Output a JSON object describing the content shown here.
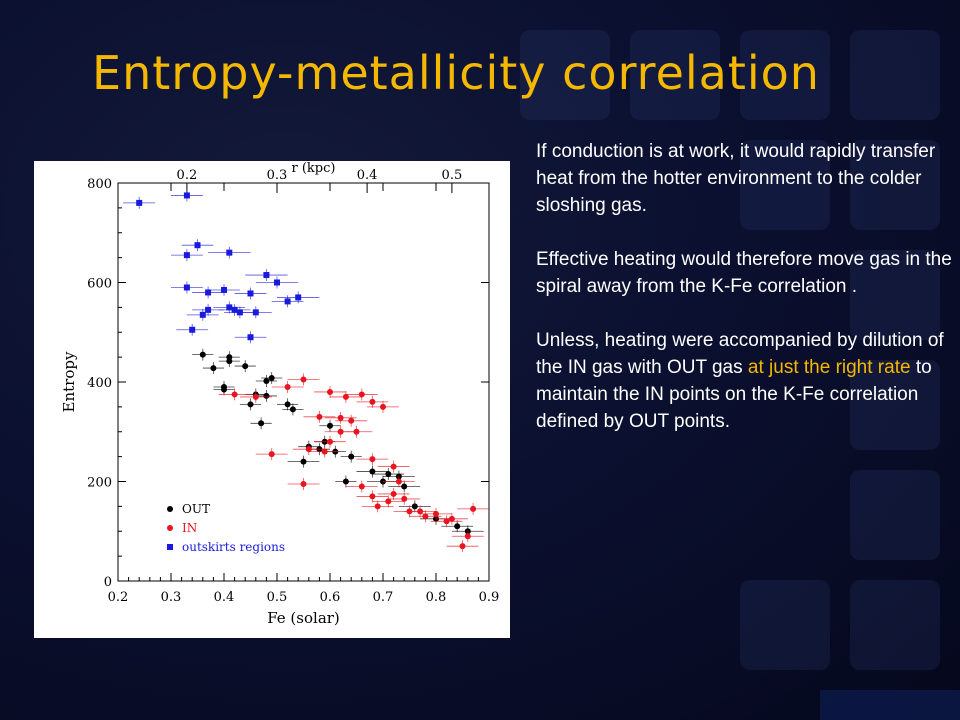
{
  "slide": {
    "title": "Entropy-metallicity correlation",
    "paragraphs": [
      {
        "text": "If conduction is at work, it would rapidly transfer heat from the hotter environment to the colder sloshing gas."
      },
      {
        "text": "Effective heating would therefore move gas in the spiral away from the K-Fe correlation ."
      },
      {
        "pre": "Unless, heating were accompanied by dilution of the IN gas with OUT gas ",
        "highlight": "at just the right rate",
        "post": " to maintain the IN points on the K-Fe correlation defined by OUT points."
      }
    ],
    "colors": {
      "title": "#f5b800",
      "highlight": "#f5b800",
      "text": "#ffffff"
    }
  },
  "chart_data": {
    "type": "scatter",
    "xlabel": "Fe (solar)",
    "ylabel": "Entropy",
    "top_axis_label": "r (kpc)",
    "xlim": [
      0.2,
      0.9
    ],
    "ylim": [
      0,
      800
    ],
    "x_ticks": [
      "0.2",
      "0.3",
      "0.4",
      "0.5",
      "0.6",
      "0.7",
      "0.8",
      "0.9"
    ],
    "y_ticks": [
      "0",
      "200",
      "400",
      "600",
      "800"
    ],
    "top_ticks": [
      {
        "label": "0.2",
        "fe": 0.33
      },
      {
        "label": "0.3",
        "fe": 0.5
      },
      {
        "label": "0.4",
        "fe": 0.67
      },
      {
        "label": "0.5",
        "fe": 0.83
      }
    ],
    "legend_position": "bottom-left",
    "series": [
      {
        "name": "OUT",
        "marker": "circle",
        "color": "#000000",
        "points": [
          [
            0.36,
            455,
            0.02,
            12
          ],
          [
            0.38,
            428,
            0.02,
            12
          ],
          [
            0.41,
            450,
            0.02,
            12
          ],
          [
            0.41,
            442,
            0.02,
            12
          ],
          [
            0.44,
            432,
            0.02,
            12
          ],
          [
            0.4,
            390,
            0.02,
            12
          ],
          [
            0.4,
            385,
            0.02,
            12
          ],
          [
            0.48,
            402,
            0.02,
            12
          ],
          [
            0.49,
            408,
            0.02,
            12
          ],
          [
            0.46,
            375,
            0.02,
            12
          ],
          [
            0.48,
            372,
            0.02,
            12
          ],
          [
            0.45,
            355,
            0.02,
            12
          ],
          [
            0.52,
            355,
            0.02,
            12
          ],
          [
            0.53,
            345,
            0.02,
            12
          ],
          [
            0.47,
            317,
            0.02,
            12
          ],
          [
            0.55,
            240,
            0.03,
            12
          ],
          [
            0.56,
            270,
            0.02,
            12
          ],
          [
            0.59,
            280,
            0.02,
            12
          ],
          [
            0.61,
            260,
            0.02,
            12
          ],
          [
            0.6,
            312,
            0.02,
            12
          ],
          [
            0.58,
            265,
            0.02,
            12
          ],
          [
            0.64,
            250,
            0.02,
            12
          ],
          [
            0.63,
            200,
            0.02,
            12
          ],
          [
            0.68,
            220,
            0.03,
            12
          ],
          [
            0.71,
            215,
            0.03,
            12
          ],
          [
            0.7,
            200,
            0.03,
            12
          ],
          [
            0.73,
            210,
            0.03,
            12
          ],
          [
            0.74,
            190,
            0.03,
            12
          ],
          [
            0.76,
            150,
            0.03,
            12
          ],
          [
            0.8,
            125,
            0.03,
            12
          ],
          [
            0.84,
            110,
            0.03,
            12
          ],
          [
            0.86,
            100,
            0.03,
            12
          ]
        ]
      },
      {
        "name": "IN",
        "marker": "circle",
        "color": "#e8141e",
        "points": [
          [
            0.42,
            375,
            0.03,
            12
          ],
          [
            0.46,
            370,
            0.03,
            12
          ],
          [
            0.52,
            390,
            0.03,
            12
          ],
          [
            0.55,
            405,
            0.03,
            12
          ],
          [
            0.6,
            380,
            0.03,
            12
          ],
          [
            0.63,
            370,
            0.03,
            12
          ],
          [
            0.66,
            375,
            0.03,
            12
          ],
          [
            0.68,
            360,
            0.03,
            12
          ],
          [
            0.7,
            350,
            0.03,
            12
          ],
          [
            0.58,
            330,
            0.03,
            12
          ],
          [
            0.62,
            328,
            0.03,
            12
          ],
          [
            0.64,
            322,
            0.03,
            12
          ],
          [
            0.65,
            300,
            0.03,
            12
          ],
          [
            0.62,
            300,
            0.03,
            12
          ],
          [
            0.6,
            280,
            0.03,
            12
          ],
          [
            0.59,
            260,
            0.03,
            12
          ],
          [
            0.56,
            265,
            0.03,
            12
          ],
          [
            0.49,
            255,
            0.03,
            12
          ],
          [
            0.55,
            195,
            0.03,
            12
          ],
          [
            0.68,
            245,
            0.03,
            12
          ],
          [
            0.72,
            230,
            0.03,
            12
          ],
          [
            0.73,
            200,
            0.03,
            12
          ],
          [
            0.66,
            190,
            0.03,
            12
          ],
          [
            0.68,
            170,
            0.03,
            12
          ],
          [
            0.69,
            150,
            0.03,
            12
          ],
          [
            0.71,
            160,
            0.03,
            12
          ],
          [
            0.72,
            175,
            0.03,
            12
          ],
          [
            0.74,
            165,
            0.03,
            12
          ],
          [
            0.75,
            140,
            0.03,
            12
          ],
          [
            0.77,
            140,
            0.03,
            12
          ],
          [
            0.78,
            130,
            0.03,
            12
          ],
          [
            0.8,
            135,
            0.03,
            12
          ],
          [
            0.82,
            120,
            0.03,
            12
          ],
          [
            0.83,
            125,
            0.03,
            12
          ],
          [
            0.86,
            90,
            0.03,
            12
          ],
          [
            0.85,
            70,
            0.03,
            12
          ],
          [
            0.87,
            145,
            0.03,
            12
          ]
        ]
      },
      {
        "name": "outskirts regions",
        "marker": "square",
        "color": "#1a1adc",
        "points": [
          [
            0.24,
            760,
            0.03,
            12
          ],
          [
            0.33,
            775,
            0.03,
            12
          ],
          [
            0.33,
            655,
            0.03,
            12
          ],
          [
            0.35,
            675,
            0.03,
            12
          ],
          [
            0.41,
            660,
            0.04,
            12
          ],
          [
            0.33,
            590,
            0.03,
            12
          ],
          [
            0.37,
            580,
            0.03,
            12
          ],
          [
            0.4,
            585,
            0.03,
            12
          ],
          [
            0.45,
            578,
            0.03,
            12
          ],
          [
            0.48,
            615,
            0.04,
            12
          ],
          [
            0.5,
            600,
            0.04,
            12
          ],
          [
            0.52,
            562,
            0.03,
            12
          ],
          [
            0.54,
            570,
            0.04,
            12
          ],
          [
            0.41,
            550,
            0.03,
            12
          ],
          [
            0.42,
            545,
            0.03,
            12
          ],
          [
            0.46,
            540,
            0.03,
            12
          ],
          [
            0.36,
            535,
            0.03,
            12
          ],
          [
            0.37,
            545,
            0.03,
            12
          ],
          [
            0.43,
            540,
            0.03,
            12
          ],
          [
            0.34,
            505,
            0.03,
            12
          ],
          [
            0.45,
            490,
            0.03,
            12
          ]
        ]
      }
    ]
  }
}
